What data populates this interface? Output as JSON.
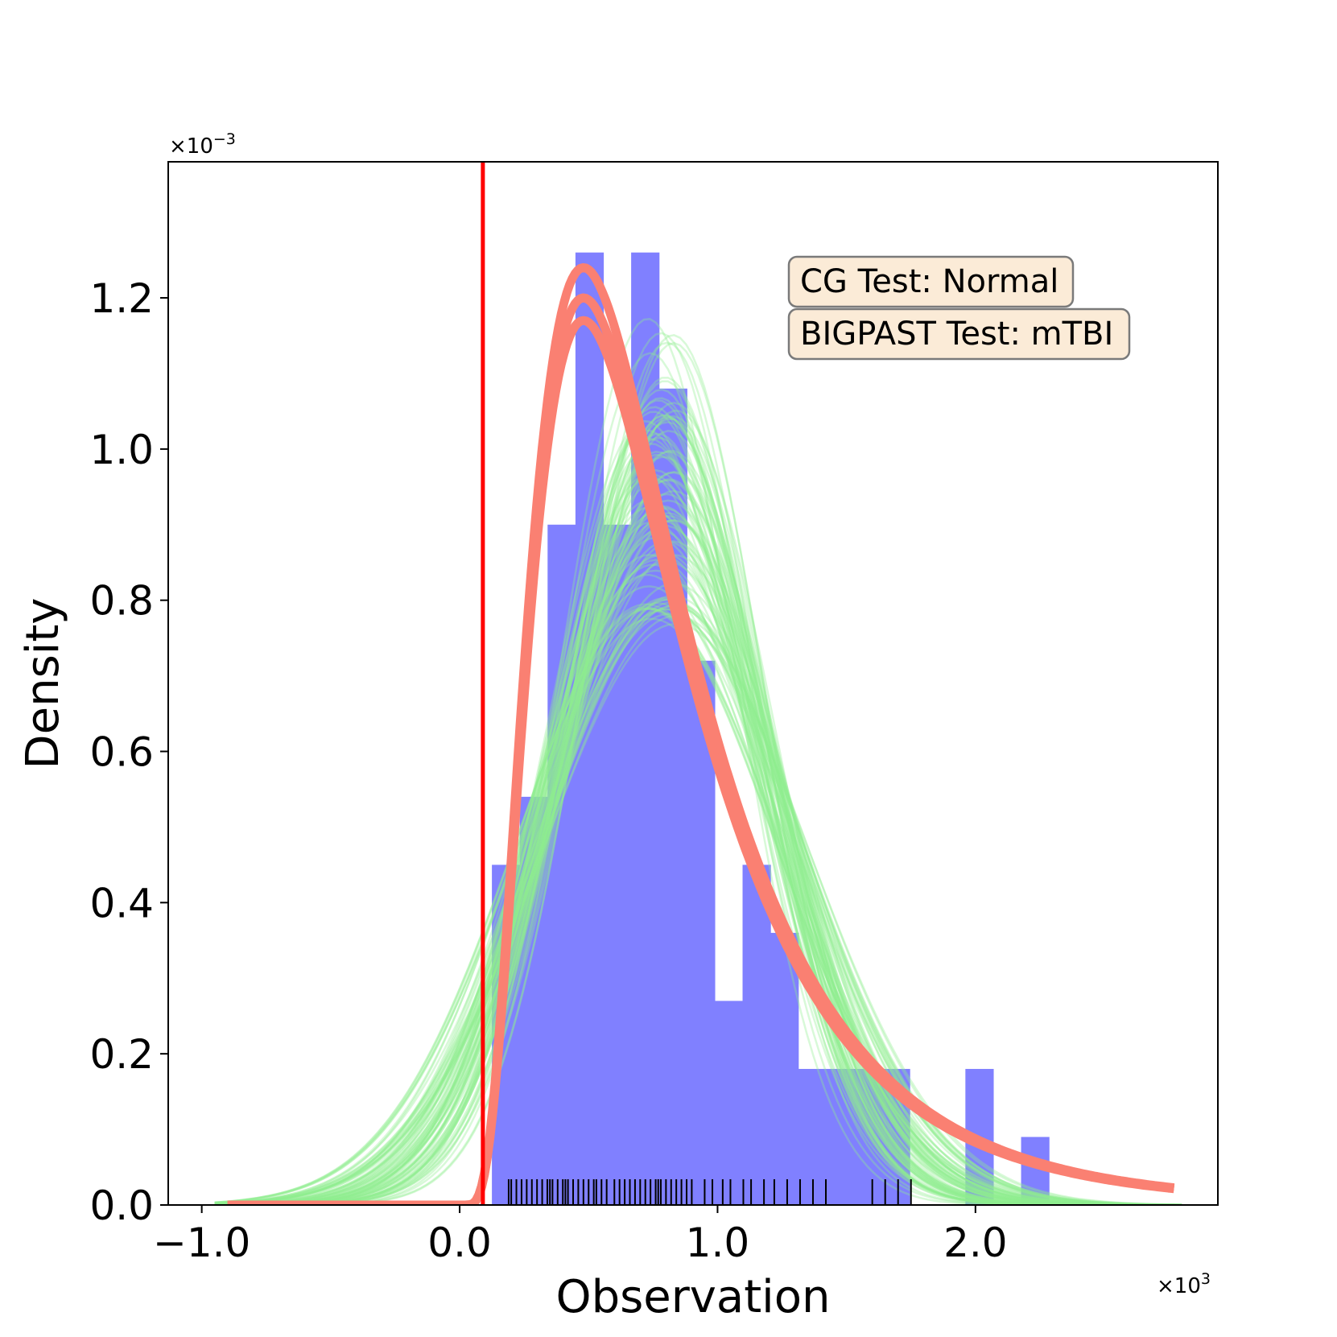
{
  "chart_data": {
    "type": "histogram",
    "xlabel": "Observation",
    "ylabel": "Density",
    "x_multiplier": {
      "base": "×10",
      "exp": "3"
    },
    "y_multiplier": {
      "base": "×10",
      "exp": "−3"
    },
    "xlim": [
      -1.13,
      2.94
    ],
    "ylim": [
      0,
      1.38
    ],
    "x_ticks": [
      {
        "value": -1.0,
        "label": "−1.0"
      },
      {
        "value": 0.0,
        "label": "0.0"
      },
      {
        "value": 1.0,
        "label": "1.0"
      },
      {
        "value": 2.0,
        "label": "2.0"
      }
    ],
    "y_ticks": [
      {
        "value": 0.0,
        "label": "0.0"
      },
      {
        "value": 0.2,
        "label": "0.2"
      },
      {
        "value": 0.4,
        "label": "0.4"
      },
      {
        "value": 0.6,
        "label": "0.6"
      },
      {
        "value": 0.8,
        "label": "0.8"
      },
      {
        "value": 1.0,
        "label": "1.0"
      },
      {
        "value": 1.2,
        "label": "1.2"
      }
    ],
    "histogram": {
      "color": "#8080ff",
      "bin_edges": [
        0.125,
        0.233,
        0.341,
        0.449,
        0.557,
        0.665,
        0.773,
        0.881,
        0.989,
        1.097,
        1.205,
        1.313,
        1.421,
        1.529,
        1.637,
        1.745,
        1.853,
        1.961,
        2.069,
        2.177,
        2.285
      ],
      "density": [
        0.45,
        0.54,
        0.9,
        1.26,
        0.9,
        1.26,
        1.08,
        0.72,
        0.27,
        0.45,
        0.36,
        0.18,
        0.18,
        0.18,
        0.18,
        0.0,
        0.0,
        0.18,
        0.0,
        0.09
      ]
    },
    "threshold_line": {
      "x": 0.09,
      "color": "#ff0000"
    },
    "rug": {
      "color": "#000000",
      "x": [
        0.19,
        0.2,
        0.22,
        0.24,
        0.26,
        0.28,
        0.3,
        0.32,
        0.34,
        0.35,
        0.36,
        0.38,
        0.4,
        0.41,
        0.42,
        0.44,
        0.46,
        0.48,
        0.5,
        0.52,
        0.53,
        0.55,
        0.57,
        0.6,
        0.62,
        0.64,
        0.66,
        0.68,
        0.7,
        0.72,
        0.74,
        0.76,
        0.77,
        0.78,
        0.8,
        0.82,
        0.84,
        0.86,
        0.88,
        0.9,
        0.95,
        0.98,
        1.02,
        1.05,
        1.1,
        1.13,
        1.18,
        1.22,
        1.27,
        1.32,
        1.37,
        1.42,
        1.6,
        1.65,
        1.7,
        1.75
      ]
    },
    "fitted_curves": {
      "color": "#fa8072",
      "note_type": "skewed",
      "curves": [
        {
          "mode": 0.48,
          "peak": 1.24
        },
        {
          "mode": 0.48,
          "peak": 1.2
        },
        {
          "mode": 0.48,
          "peak": 1.17
        }
      ],
      "x_range": [
        0.0,
        2.77
      ],
      "x_start": -0.9
    },
    "posterior_curves": {
      "color": "#90ee90",
      "count": 90,
      "mean_range": [
        0.72,
        0.84
      ],
      "sd_range": [
        0.34,
        0.52
      ],
      "x_range": [
        -0.95,
        2.8
      ]
    },
    "annotations": [
      {
        "text": "CG Test: Normal"
      },
      {
        "text": "BIGPAST Test: mTBI"
      }
    ]
  }
}
